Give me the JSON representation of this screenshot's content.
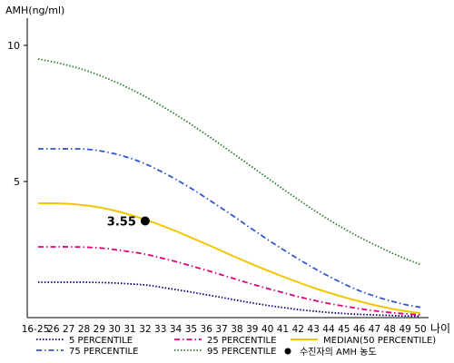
{
  "chart_data": {
    "type": "line",
    "ylabel": "AMH(ng/ml)",
    "xlabel": "나이",
    "x_categories": [
      "16-25",
      "26",
      "27",
      "28",
      "29",
      "30",
      "31",
      "32",
      "33",
      "34",
      "35",
      "36",
      "37",
      "38",
      "39",
      "40",
      "41",
      "42",
      "43",
      "44",
      "45",
      "46",
      "47",
      "48",
      "49",
      "50"
    ],
    "ylim": [
      0,
      11
    ],
    "y_ticks": [
      5,
      10
    ],
    "grid": false,
    "legend_position": "bottom",
    "series": [
      {
        "name": "5 PERCENTILE",
        "color": "#000080",
        "dash": "dotted",
        "values": [
          1.3,
          1.3,
          1.3,
          1.3,
          1.29,
          1.27,
          1.24,
          1.2,
          1.12,
          1.03,
          0.94,
          0.84,
          0.74,
          0.64,
          0.54,
          0.45,
          0.37,
          0.3,
          0.24,
          0.19,
          0.15,
          0.12,
          0.1,
          0.08,
          0.06,
          0.05
        ]
      },
      {
        "name": "25 PERCENTILE",
        "color": "#e0007a",
        "dash": "dashdot",
        "values": [
          2.6,
          2.6,
          2.6,
          2.59,
          2.56,
          2.5,
          2.42,
          2.33,
          2.2,
          2.06,
          1.9,
          1.74,
          1.57,
          1.4,
          1.23,
          1.07,
          0.92,
          0.77,
          0.64,
          0.52,
          0.42,
          0.33,
          0.25,
          0.19,
          0.14,
          0.1
        ]
      },
      {
        "name": "MEDIAN(50 PERCENTILE)",
        "color": "#f2c500",
        "dash": "solid",
        "values": [
          4.2,
          4.2,
          4.18,
          4.13,
          4.05,
          3.93,
          3.78,
          3.6,
          3.4,
          3.18,
          2.94,
          2.7,
          2.45,
          2.2,
          1.96,
          1.73,
          1.51,
          1.3,
          1.1,
          0.92,
          0.75,
          0.6,
          0.46,
          0.34,
          0.24,
          0.16
        ]
      },
      {
        "name": "75 PERCENTILE",
        "color": "#3355cc",
        "dash": "dashdot",
        "values": [
          6.2,
          6.2,
          6.2,
          6.19,
          6.13,
          6.02,
          5.86,
          5.65,
          5.38,
          5.08,
          4.75,
          4.39,
          4.02,
          3.64,
          3.25,
          2.87,
          2.51,
          2.16,
          1.83,
          1.52,
          1.24,
          0.99,
          0.79,
          0.62,
          0.48,
          0.38
        ]
      },
      {
        "name": "95 PERCENTILE",
        "color": "#2e7d32",
        "dash": "dotted",
        "values": [
          9.5,
          9.39,
          9.26,
          9.1,
          8.9,
          8.67,
          8.41,
          8.12,
          7.8,
          7.46,
          7.1,
          6.72,
          6.33,
          5.93,
          5.53,
          5.13,
          4.73,
          4.34,
          3.96,
          3.6,
          3.27,
          2.96,
          2.68,
          2.41,
          2.17,
          1.95
        ]
      }
    ],
    "marker": {
      "name": "수진자의 AMH 농도",
      "x": "32",
      "value": 3.55,
      "label": "3.55",
      "color": "#000000"
    }
  }
}
